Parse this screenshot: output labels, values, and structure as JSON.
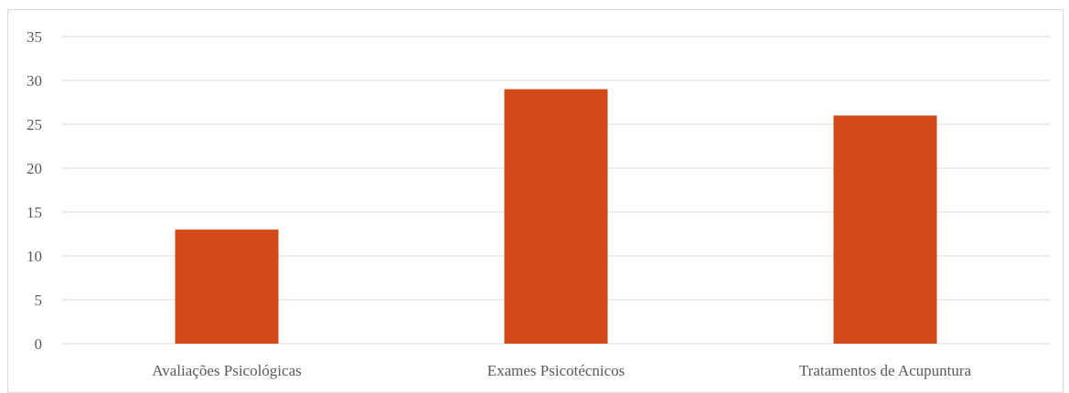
{
  "chart_data": {
    "type": "bar",
    "title": "",
    "xlabel": "",
    "ylabel": "",
    "categories": [
      "Avaliações Psicológicas",
      "Exames Psicotécnicos",
      "Tratamentos de Acupuntura"
    ],
    "values": [
      13,
      29,
      26
    ],
    "ylim": [
      0,
      35
    ],
    "yticks": [
      0,
      5,
      10,
      15,
      20,
      25,
      30,
      35
    ],
    "grid": true,
    "legend": "none",
    "bar_color": "#d24a17",
    "grid_color": "#d9d9d9"
  }
}
